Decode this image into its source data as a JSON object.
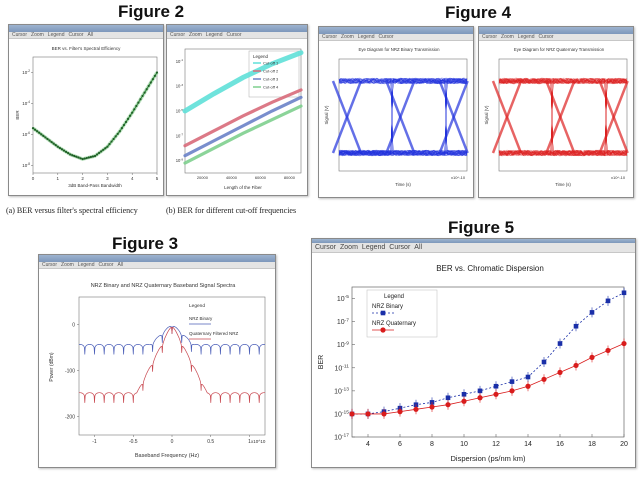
{
  "figures": {
    "fig2": {
      "title": "Figure 2",
      "caption_a": "(a) BER versus filter's spectral efficiency",
      "caption_b": "(b) BER for different cut-off frequencies"
    },
    "fig3": {
      "title": "Figure 3"
    },
    "fig4": {
      "title": "Figure 4"
    },
    "fig5": {
      "title": "Figure 5"
    }
  },
  "window_menu": [
    "Cursor",
    "Zoom",
    "Legend",
    "Cursor",
    "All"
  ],
  "chart_data": [
    {
      "id": "fig2a",
      "type": "line",
      "title": "BER vs. Filter's Spectral Efficiency",
      "xlabel": "3dB Band-Pass Bandwidth",
      "ylabel": "BER",
      "x": [
        0,
        0.5,
        1.0,
        1.5,
        2.0,
        2.5,
        3.0,
        3.5,
        4.0,
        4.5,
        5.0
      ],
      "y_log10": [
        -5.6,
        -6.2,
        -6.8,
        -7.3,
        -7.6,
        -7.4,
        -6.8,
        -5.8,
        -4.6,
        -3.3,
        -2.0
      ],
      "series_color": "#2e8b3a",
      "xlim": [
        0,
        5
      ],
      "ylim_log10": [
        -8.5,
        -1
      ]
    },
    {
      "id": "fig2b",
      "type": "line",
      "title": "",
      "xlabel": "Length of the Fiber",
      "ylabel": "",
      "legend_title": "Legend",
      "x": [
        0,
        1,
        2,
        3,
        4
      ],
      "series": [
        {
          "name": "Cut-off 1",
          "color": "#5fe0d8",
          "y_log10": [
            -5.0,
            -3.6,
            -2.3,
            -1.2,
            -0.3
          ]
        },
        {
          "name": "Cut-off 2",
          "color": "#d86a7a",
          "y_log10": [
            -7.8,
            -6.6,
            -5.4,
            -4.3,
            -3.3
          ]
        },
        {
          "name": "Cut-off 3",
          "color": "#6a82c8",
          "y_log10": [
            -8.6,
            -7.4,
            -6.2,
            -5.0,
            -3.9
          ]
        },
        {
          "name": "Cut-off 4",
          "color": "#7ecf8e",
          "y_log10": [
            -9.2,
            -8.0,
            -6.8,
            -5.7,
            -4.6
          ]
        }
      ],
      "xtick_labels": [
        "20000",
        "40000",
        "60000",
        "80000"
      ],
      "ylim_log10": [
        -10,
        0
      ]
    },
    {
      "id": "fig3",
      "type": "line",
      "title": "NRZ Binary and NRZ Quaternary Baseband Signal Spectra",
      "xlabel": "Baseband Frequency (Hz)",
      "ylabel": "Power (dBm)",
      "legend_title": "Legend",
      "x_scale": "x10^10",
      "xticks": [
        -1,
        -0.5,
        0,
        0.5,
        1
      ],
      "yticks": [
        0,
        -100,
        -200
      ],
      "ylim": [
        -240,
        60
      ],
      "series": [
        {
          "name": "NRZ Binary",
          "color": "#4c5fb8",
          "peak": 0,
          "floor": -45,
          "lobes": 16
        },
        {
          "name": "Quaternary Filtered NRZ",
          "color": "#c8474f",
          "peak": 0,
          "floor": -165,
          "lobes": 16
        }
      ]
    },
    {
      "id": "fig4a",
      "type": "line",
      "title": "Eye Diagram for NRZ Binary Transmission",
      "xlabel": "Time (s)",
      "ylabel": "Signal (V)",
      "color": "#2233dd",
      "x_scale": "x10^-10"
    },
    {
      "id": "fig4b",
      "type": "line",
      "title": "Eye Diagram for NRZ Quaternary Transmission",
      "xlabel": "Time (s)",
      "ylabel": "Signal (V)",
      "color": "#dd2222",
      "x_scale": "x10^-10"
    },
    {
      "id": "fig5",
      "type": "scatter",
      "title": "BER vs. Chromatic Dispersion",
      "xlabel": "Dispersion (ps/nm km)",
      "ylabel": "BER",
      "legend_title": "Legend",
      "x": [
        3,
        4,
        5,
        6,
        7,
        8,
        9,
        10,
        11,
        12,
        13,
        14,
        15,
        16,
        17,
        18,
        19,
        20
      ],
      "series": [
        {
          "name": "NRZ Binary",
          "color": "#1a2fa8",
          "y_log10": [
            -15,
            -15,
            -14.8,
            -14.5,
            -14.2,
            -14.0,
            -13.6,
            -13.3,
            -13.0,
            -12.6,
            -12.2,
            -11.8,
            -10.5,
            -8.9,
            -7.4,
            -6.2,
            -5.2,
            -4.5
          ]
        },
        {
          "name": "NRZ Quaternary",
          "color": "#d91c1c",
          "y_log10": [
            -15,
            -15,
            -15,
            -14.8,
            -14.6,
            -14.4,
            -14.2,
            -13.9,
            -13.6,
            -13.3,
            -13.0,
            -12.6,
            -12.0,
            -11.4,
            -10.8,
            -10.1,
            -9.5,
            -8.9
          ]
        }
      ],
      "xlim": [
        3,
        20
      ],
      "xticks": [
        4,
        6,
        8,
        10,
        12,
        14,
        16,
        18,
        20
      ],
      "ylim_log10": [
        -17,
        -4
      ],
      "yticks_log10": [
        -5,
        -7,
        -9,
        -11,
        -13,
        -15,
        -17
      ]
    }
  ]
}
